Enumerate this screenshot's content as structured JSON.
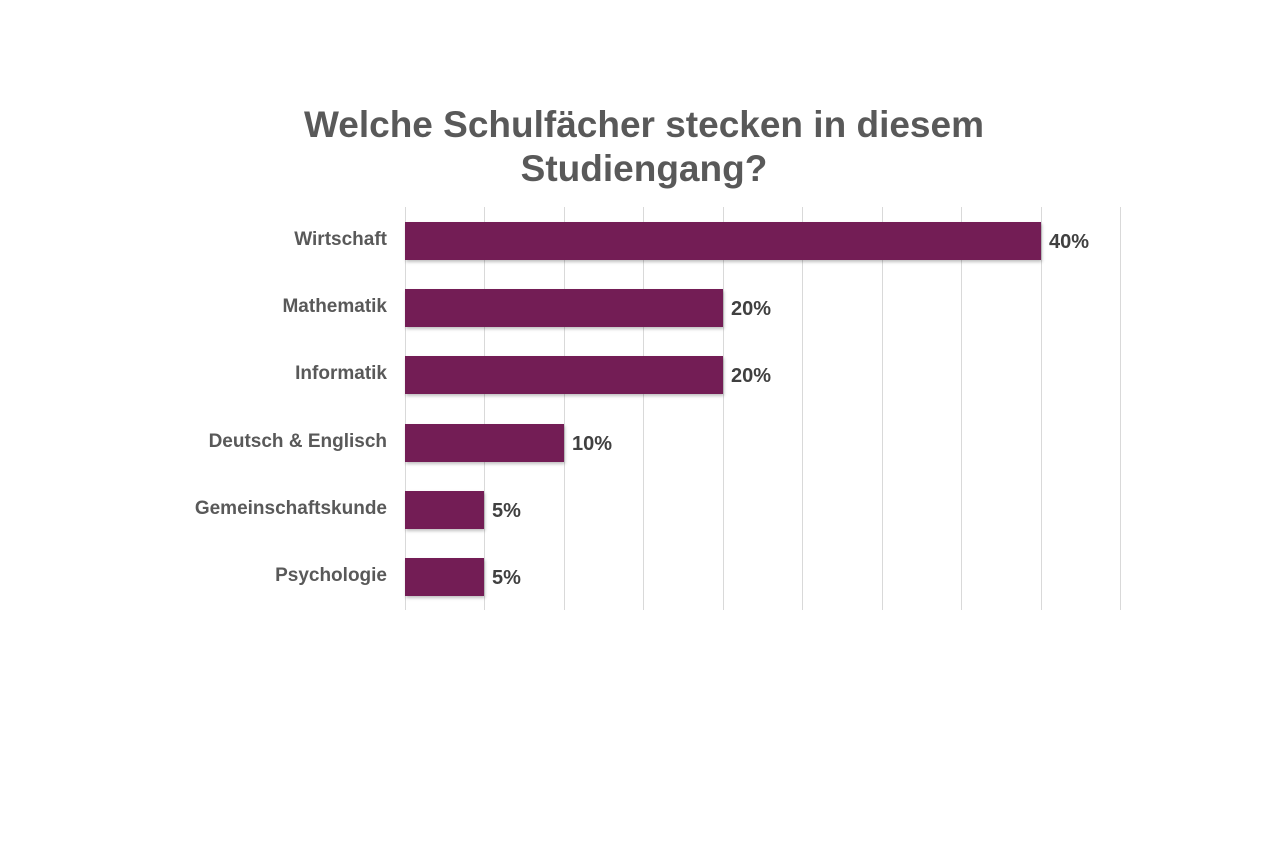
{
  "chart_data": {
    "type": "bar",
    "orientation": "horizontal",
    "title": "Welche Schulfächer stecken in diesem Studiengang?",
    "title_lines": [
      "Welche Schulfächer stecken in diesem",
      "Studiengang?"
    ],
    "categories": [
      "Wirtschaft",
      "Mathematik",
      "Informatik",
      "Deutsch & Englisch",
      "Gemeinschaftskunde",
      "Psychologie"
    ],
    "values": [
      40,
      20,
      20,
      10,
      5,
      5
    ],
    "value_labels": [
      "40%",
      "20%",
      "20%",
      "10%",
      "5%",
      "5%"
    ],
    "xlabel": "",
    "ylabel": "",
    "xlim": [
      0,
      45
    ],
    "grid": true,
    "grid_step": 5,
    "legend": "none",
    "bar_color": "#731d55"
  }
}
